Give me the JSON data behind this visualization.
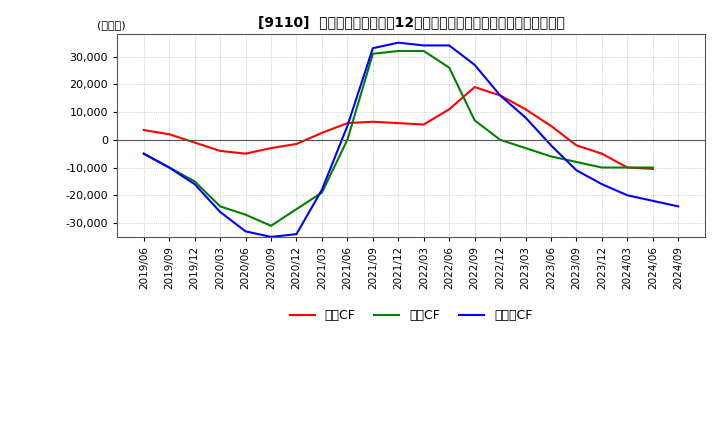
{
  "title": "[9110]  キャッシュフローの12か月移動合計の対前年同期増減額の推移",
  "ylabel": "(百万円)",
  "ylim": [
    -35000,
    38000
  ],
  "yticks": [
    -30000,
    -20000,
    -10000,
    0,
    10000,
    20000,
    30000
  ],
  "dates": [
    "2019/06",
    "2019/09",
    "2019/12",
    "2020/03",
    "2020/06",
    "2020/09",
    "2020/12",
    "2021/03",
    "2021/06",
    "2021/09",
    "2021/12",
    "2022/03",
    "2022/06",
    "2022/09",
    "2022/12",
    "2023/03",
    "2023/06",
    "2023/09",
    "2023/12",
    "2024/03",
    "2024/06",
    "2024/09"
  ],
  "operating_cf": [
    3500,
    2000,
    -1000,
    -4000,
    -5000,
    -3000,
    -1500,
    2500,
    6000,
    6500,
    6000,
    5500,
    11000,
    19000,
    16000,
    11000,
    5000,
    -2000,
    -5000,
    -10000,
    -10500,
    null
  ],
  "investing_cf": [
    -5000,
    -10000,
    -15000,
    -24000,
    -27000,
    -31000,
    -25000,
    -19000,
    0,
    31000,
    32000,
    32000,
    26000,
    7000,
    0,
    -3000,
    -6000,
    -8000,
    -10000,
    -10000,
    -10000,
    null
  ],
  "free_cf": [
    -5000,
    -10000,
    -16000,
    -26000,
    -33000,
    -35000,
    -34000,
    -18000,
    5000,
    33000,
    35000,
    34000,
    34000,
    27000,
    16000,
    8000,
    -2000,
    -11000,
    -16000,
    -20000,
    -22000,
    -24000
  ],
  "operating_color": "#ff0000",
  "investing_color": "#008000",
  "free_cf_color": "#0000ff",
  "background_color": "#ffffff",
  "grid_color": "#aaaaaa",
  "legend_labels": [
    "営業CF",
    "投資CF",
    "フリーCF"
  ]
}
